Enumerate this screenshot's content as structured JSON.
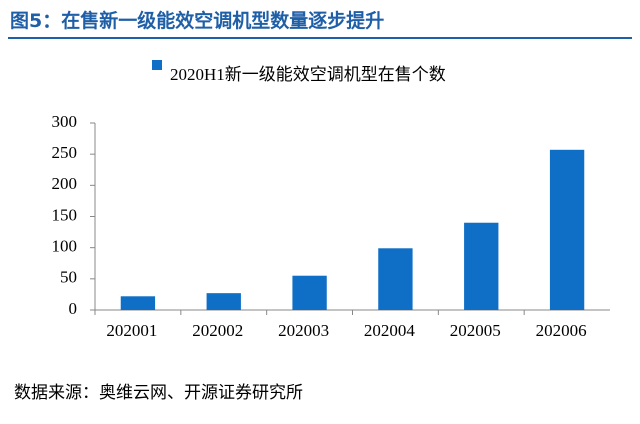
{
  "header": {
    "title": "图5：在售新一级能效空调机型数量逐步提升"
  },
  "chart_data": {
    "type": "bar",
    "categories": [
      "202001",
      "202002",
      "202003",
      "202004",
      "202005",
      "202006"
    ],
    "series": [
      {
        "name": "2020H1新一级能效空调机型在售个数",
        "color": "#0f6fc6",
        "values": [
          22,
          27,
          55,
          99,
          140,
          257
        ]
      }
    ],
    "ylim": [
      0,
      300
    ],
    "yticks": [
      0,
      50,
      100,
      150,
      200,
      250,
      300
    ],
    "grid": false
  },
  "footer": {
    "source": "数据来源：奥维云网、开源证券研究所"
  }
}
